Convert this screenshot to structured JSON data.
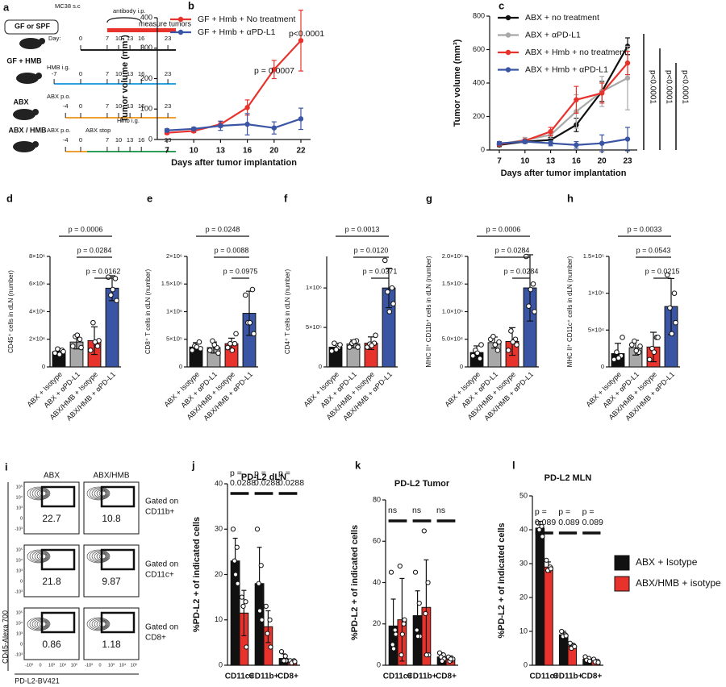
{
  "schematic": {
    "label": "a",
    "implant": "MC38 s.c",
    "antibody": "antibody i.p.",
    "measure": "measure tumors",
    "day_prefix": "Day:",
    "groups": [
      {
        "name": "GF or SPF",
        "color": "#000000"
      },
      {
        "name": "GF + HMB",
        "color": "#2aa3e0"
      },
      {
        "name": "ABX",
        "color": "#f0a030"
      },
      {
        "name": "ABX / HMB",
        "color": "#2e9e5a"
      }
    ],
    "timelines": [
      {
        "days": [
          0,
          7,
          10,
          13,
          16,
          23
        ],
        "colors": [
          "#222222"
        ]
      },
      {
        "note": [
          "HMB i.g."
        ],
        "days": [
          -7,
          0,
          7,
          10,
          13,
          16,
          23
        ],
        "colors": [
          "#2aa3e0"
        ]
      },
      {
        "note": [
          "ABX p.o."
        ],
        "days": [
          -4,
          0,
          7,
          10,
          13,
          16,
          23
        ],
        "colors": [
          "#f0a030"
        ]
      },
      {
        "note": [
          "ABX p.o.",
          "ABX stop",
          "Hmb i.g."
        ],
        "days": [
          -4,
          0,
          7,
          10,
          13,
          16,
          23
        ],
        "colors": [
          "#f0a030",
          "#2e9e5a"
        ]
      }
    ]
  },
  "chart_data": [
    {
      "type": "line",
      "label": "b",
      "y_label": "Tumor volume (mm³)",
      "x_label": "Days after tumor implantation",
      "categories": [
        "7",
        "10",
        "13",
        "16",
        "20",
        "22"
      ],
      "ylim": [
        0,
        400
      ],
      "yticks": [
        0,
        100,
        200,
        300,
        400
      ],
      "legend": "top-left",
      "series": [
        {
          "name": "GF + Hmb + No treatment",
          "color": "#e8322c",
          "values": [
            22,
            28,
            50,
            105,
            230,
            325
          ],
          "errors": [
            5,
            5,
            10,
            25,
            30,
            100
          ]
        },
        {
          "name": "GF + Hmb + αPD-L1",
          "color": "#3a55a4",
          "values": [
            30,
            35,
            45,
            50,
            38,
            68
          ],
          "errors": [
            5,
            5,
            15,
            35,
            20,
            35
          ]
        }
      ],
      "annotations": [
        "p = 0.0007",
        "p<0.0001"
      ]
    },
    {
      "type": "line",
      "label": "c",
      "y_label": "Tumor volume (mm³)",
      "x_label": "Days after tumor implantation",
      "categories": [
        "7",
        "10",
        "13",
        "16",
        "20",
        "23"
      ],
      "ylim": [
        0,
        800
      ],
      "yticks": [
        0,
        200,
        400,
        600,
        800
      ],
      "legend": "top-left",
      "series": [
        {
          "name": "ABX + no treatment",
          "color": "#111111",
          "values": [
            30,
            50,
            60,
            150,
            350,
            620
          ],
          "errors": [
            10,
            10,
            15,
            40,
            60,
            50
          ]
        },
        {
          "name": "ABX + αPD-L1",
          "color": "#a8a8a8",
          "values": [
            35,
            60,
            90,
            230,
            350,
            430
          ],
          "errors": [
            10,
            15,
            20,
            100,
            90,
            190
          ]
        },
        {
          "name": "ABX + Hmb + no treatment",
          "color": "#e8322c",
          "values": [
            35,
            55,
            110,
            300,
            340,
            520
          ],
          "errors": [
            10,
            10,
            25,
            80,
            60,
            70
          ]
        },
        {
          "name": "ABX + Hmb + αPD-L1",
          "color": "#3a55a4",
          "values": [
            40,
            50,
            40,
            30,
            40,
            65
          ],
          "errors": [
            10,
            10,
            15,
            20,
            50,
            70
          ]
        }
      ],
      "annotations": [
        {
          "text": "p<0.0001",
          "color": "#111111"
        },
        {
          "text": "p<0.0001",
          "color": "#e8322c"
        },
        {
          "text": "p<0.0001",
          "color": "#a8a8a8"
        }
      ]
    },
    {
      "type": "bar",
      "label": "d",
      "y_label": "CD45⁺ cells in dLN (number)",
      "categories": [
        "ABX + Isotype",
        "ABX + αPD-L1",
        "ABX/HMB + Isotype",
        "ABX/HMB + αPD-L1"
      ],
      "colors": [
        "#111111",
        "#a8a8a8",
        "#e8322c",
        "#3a55a4"
      ],
      "ylim": [
        0,
        8000000
      ],
      "yticks": [
        0,
        {
          "value": 2000000,
          "label": "2×10⁶"
        },
        {
          "value": 4000000,
          "label": "4×10⁶"
        },
        {
          "value": 6000000,
          "label": "6×10⁶"
        },
        {
          "value": 8000000,
          "label": "8×10⁶"
        }
      ],
      "values": [
        1100000,
        1800000,
        1900000,
        5700000
      ],
      "errors": [
        200000,
        500000,
        1000000,
        900000
      ],
      "points": [
        [
          1000000,
          1200000,
          1300000,
          1100000,
          900000
        ],
        [
          1500000,
          2000000,
          2200000,
          1400000,
          2300000
        ],
        [
          1200000,
          1500000,
          3200000,
          1900000,
          1800000
        ],
        [
          6500000,
          6400000,
          5200000,
          4800000,
          5600000
        ]
      ],
      "comparisons": [
        "p = 0.0006",
        "p = 0.0284",
        "p = 0.0162"
      ]
    },
    {
      "type": "bar",
      "label": "e",
      "y_label": "CD8⁺ T cells in dLN (number)",
      "categories": [
        "ABX + Isotype",
        "ABX + αPD-L1",
        "ABX/HMB + Isotype",
        "ABX/HMB + αPD-L1"
      ],
      "colors": [
        "#111111",
        "#a8a8a8",
        "#e8322c",
        "#3a55a4"
      ],
      "ylim": [
        0,
        2000000
      ],
      "yticks": [
        0,
        {
          "value": 500000,
          "label": "5×10⁵"
        },
        {
          "value": 1000000,
          "label": "1×10⁶"
        },
        {
          "value": 1500000,
          "label": "1.5×10⁶"
        },
        {
          "value": 2000000,
          "label": "2×10⁶"
        }
      ],
      "values": [
        360000,
        350000,
        420000,
        970000
      ],
      "errors": [
        80000,
        100000,
        100000,
        400000
      ],
      "points": [
        [
          300000,
          450000,
          380000,
          330000,
          360000
        ],
        [
          300000,
          350000,
          470000,
          250000,
          400000
        ],
        [
          350000,
          420000,
          420000,
          600000,
          300000
        ],
        [
          1300000,
          1400000,
          800000,
          600000,
          800000
        ]
      ],
      "comparisons": [
        "p = 0.0248",
        "p = 0.0088",
        "p = 0.0975"
      ]
    },
    {
      "type": "bar",
      "label": "f",
      "y_label": "CD4⁺ T cells in dLN (number)",
      "categories": [
        "ABX + Isotype",
        "ABX + αPD-L1",
        "ABX/HMB + Isotype",
        "ABX/HMB + αPD-L1"
      ],
      "colors": [
        "#111111",
        "#a8a8a8",
        "#e8322c",
        "#3a55a4"
      ],
      "ylim": [
        0,
        1400000
      ],
      "yticks": [
        0,
        {
          "value": 500000,
          "label": "5×10⁵"
        },
        {
          "value": 1000000,
          "label": "1×10⁶"
        }
      ],
      "values": [
        250000,
        290000,
        300000,
        1000000
      ],
      "errors": [
        50000,
        50000,
        80000,
        250000
      ],
      "points": [
        [
          200000,
          250000,
          300000,
          280000,
          220000
        ],
        [
          250000,
          330000,
          300000,
          250000,
          320000
        ],
        [
          250000,
          300000,
          290000,
          400000,
          270000
        ],
        [
          1350000,
          1000000,
          950000,
          800000,
          700000
        ]
      ],
      "comparisons": [
        "p = 0.0013",
        "p = 0.0120",
        "p = 0.0371"
      ]
    },
    {
      "type": "bar",
      "label": "g",
      "y_label": "MHC II⁺ CD11b⁺ cells in dLN (number)",
      "categories": [
        "ABX + Isotype",
        "ABX + αPD-L1",
        "ABX/HMB + Isotype",
        "ABX/HMB + αPD-L1"
      ],
      "colors": [
        "#111111",
        "#a8a8a8",
        "#e8322c",
        "#3a55a4"
      ],
      "ylim": [
        0,
        200000
      ],
      "yticks": [
        0,
        {
          "value": 50000,
          "label": "5.0×10⁴"
        },
        {
          "value": 100000,
          "label": "1.0×10⁵"
        },
        {
          "value": 150000,
          "label": "1.5×10⁵"
        },
        {
          "value": 200000,
          "label": "2.0×10⁵"
        }
      ],
      "values": [
        26000,
        44000,
        46000,
        143000
      ],
      "errors": [
        12000,
        10000,
        25000,
        60000
      ],
      "points": [
        [
          20000,
          15000,
          30000,
          40000,
          25000
        ],
        [
          50000,
          30000,
          55000,
          45000,
          40000
        ],
        [
          30000,
          50000,
          65000,
          40000,
          45000
        ],
        [
          200000,
          150000,
          110000,
          100000,
          140000
        ]
      ],
      "comparisons": [
        "p = 0.0006",
        "p = 0.0284",
        "p = 0.0284"
      ]
    },
    {
      "type": "bar",
      "label": "h",
      "y_label": "MHC II⁺ CD11c⁺ cells in dLN (number)",
      "categories": [
        "ABX + Isotype",
        "ABX + αPD-L1",
        "ABX/HMB + Isotype",
        "ABX/HMB + αPD-L1"
      ],
      "colors": [
        "#111111",
        "#a8a8a8",
        "#e8322c",
        "#3a55a4"
      ],
      "ylim": [
        0,
        150000
      ],
      "yticks": [
        0,
        {
          "value": 50000,
          "label": "5×10⁴"
        },
        {
          "value": 100000,
          "label": "1×10⁵"
        },
        {
          "value": 150000,
          "label": "1.5×10⁵"
        }
      ],
      "values": [
        18000,
        26000,
        27000,
        82000
      ],
      "errors": [
        14000,
        10000,
        20000,
        38000
      ],
      "points": [
        [
          10000,
          15000,
          20000,
          40000,
          12000
        ],
        [
          30000,
          20000,
          35000,
          28000,
          22000
        ],
        [
          10000,
          40000,
          25000,
          40000,
          20000
        ],
        [
          125000,
          100000,
          80000,
          60000,
          45000
        ]
      ],
      "comparisons": [
        "p = 0.0033",
        "p = 0.0543",
        "p = 0.0215"
      ]
    },
    {
      "type": "grouped_bar",
      "label": "j",
      "title": "PD-L2 dLN",
      "y_label": "%PD-L2 + of indicated cells",
      "categories": [
        "CD11c+",
        "CD11b+",
        "CD8+"
      ],
      "ylim": [
        0,
        40
      ],
      "yticks": [
        0,
        10,
        20,
        30,
        40
      ],
      "series": [
        {
          "color": "#111111",
          "values": [
            23,
            18,
            1.5
          ],
          "errors": [
            5,
            8,
            1
          ],
          "points": [
            [
              30,
              26,
              23,
              18,
              20
            ],
            [
              30,
              22,
              18,
              10,
              12
            ],
            [
              3,
              2,
              1,
              1,
              1
            ]
          ]
        },
        {
          "color": "#e8322c",
          "values": [
            11.5,
            8.5,
            0.8
          ],
          "errors": [
            5,
            3.5,
            0.5
          ],
          "points": [
            [
              15,
              14,
              13,
              4
            ],
            [
              13,
              10,
              7,
              4
            ],
            [
              1,
              1,
              0.5,
              0.8
            ]
          ]
        }
      ],
      "annotations": [
        [
          "p =",
          "0.0288"
        ],
        [
          "p =",
          "0.0288"
        ],
        [
          "p =",
          "0.0288"
        ]
      ]
    },
    {
      "type": "grouped_bar",
      "label": "k",
      "title": "PD-L2  Tumor",
      "y_label": "%PD-L2 + of indicated cells",
      "categories": [
        "CD11c+",
        "CD11b+",
        "CD8+"
      ],
      "ylim": [
        0,
        80
      ],
      "yticks": [
        0,
        20,
        40,
        60,
        80
      ],
      "series": [
        {
          "color": "#111111",
          "values": [
            19,
            24,
            4
          ],
          "errors": [
            13,
            12,
            2
          ],
          "points": [
            [
              45,
              17,
              10,
              15,
              8
            ],
            [
              45,
              30,
              17,
              14,
              14
            ],
            [
              6,
              5,
              4,
              3,
              2
            ]
          ]
        },
        {
          "color": "#e8322c",
          "values": [
            22,
            28,
            3
          ],
          "errors": [
            20,
            23,
            1.5
          ],
          "points": [
            [
              48,
              20,
              5,
              22,
              15
            ],
            [
              65,
              40,
              25,
              5,
              5
            ],
            [
              4,
              3,
              2,
              3,
              3
            ]
          ]
        }
      ],
      "annotations": [
        [
          "ns"
        ],
        [
          "ns"
        ],
        [
          "ns"
        ]
      ]
    },
    {
      "type": "grouped_bar",
      "label": "l",
      "title": "PD-L2 MLN",
      "y_label": "%PD-L2 + of indicated cells",
      "categories": [
        "CD11c+",
        "CD11b+",
        "CD8+"
      ],
      "ylim": [
        0,
        50
      ],
      "yticks": [
        0,
        10,
        20,
        30,
        40,
        50
      ],
      "legend": "right",
      "series": [
        {
          "name": "ABX + Isotype",
          "color": "#111111",
          "values": [
            40.5,
            9,
            1.8
          ],
          "errors": [
            2,
            1,
            0.5
          ],
          "points": [
            [
              42,
              41,
              40,
              38
            ],
            [
              10,
              9,
              8.5,
              8.7
            ],
            [
              2.5,
              2,
              1.5,
              1.2
            ]
          ]
        },
        {
          "name": "ABX/HMB + isotype",
          "color": "#e8322c",
          "values": [
            29,
            5.7,
            1.2
          ],
          "errors": [
            1.5,
            0.8,
            0.4
          ],
          "points": [
            [
              31,
              29,
              28,
              28.5
            ],
            [
              6.5,
              5.8,
              5,
              5.5
            ],
            [
              1.8,
              1.2,
              1,
              0.8
            ]
          ]
        }
      ],
      "annotations": [
        [
          "p =",
          "0.089"
        ],
        [
          "p =",
          "0.089"
        ],
        [
          "p =",
          "0.089"
        ]
      ]
    }
  ],
  "flow": {
    "label": "i",
    "columns": [
      "ABX",
      "ABX/HMB"
    ],
    "rows": [
      {
        "gate": [
          "Gated on",
          "CD11b+"
        ],
        "values": [
          "22.7",
          "10.8"
        ]
      },
      {
        "gate": [
          "Gated on",
          "CD11c+"
        ],
        "values": [
          "21.8",
          "9.87"
        ]
      },
      {
        "gate": [
          "Gated on",
          "CD8+"
        ],
        "values": [
          "0.86",
          "1.18"
        ]
      }
    ],
    "y_axis": "CD45-Alexa 700",
    "x_axis": "PD-L2-BV421",
    "y_ticks": [
      "10⁵",
      "10⁴",
      "10³",
      "0",
      "-10³"
    ],
    "x_ticks": [
      "-10³",
      "0",
      "10³",
      "10⁴",
      "10⁵"
    ]
  }
}
